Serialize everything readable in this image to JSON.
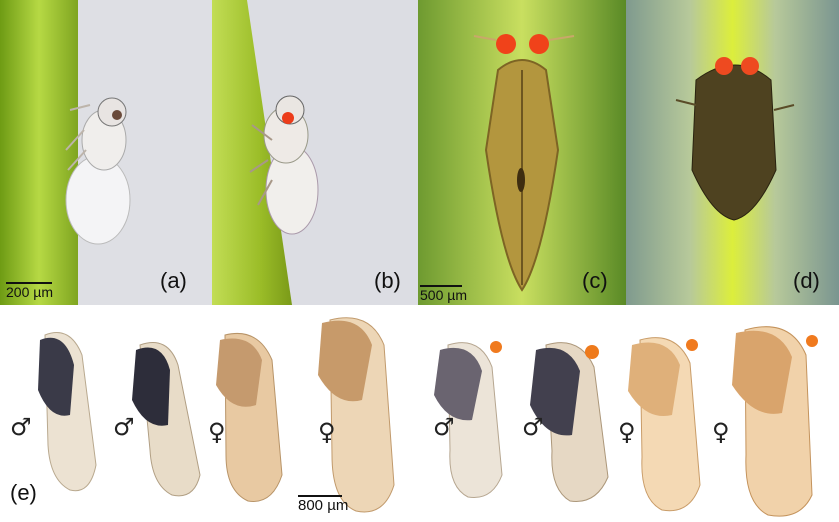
{
  "panels": {
    "a": {
      "label": "(a)",
      "scale_text": "200 µm"
    },
    "b": {
      "label": "(b)"
    },
    "c": {
      "label": "(c)",
      "scale_text": "500 µm"
    },
    "d": {
      "label": "(d)"
    },
    "e": {
      "label": "(e)",
      "scale_text": "800 µm",
      "sex_symbols": [
        "♂",
        "♂",
        "♀",
        "♀",
        "♂",
        "♂",
        "♀",
        "♀"
      ]
    }
  },
  "colors": {
    "stem_green": "#a9c93a",
    "bg_grey": "#e6e6ea",
    "orange_eye": "#e6401c",
    "dark_insect": "#2f2f3a",
    "pale_insect": "#d8b592"
  }
}
